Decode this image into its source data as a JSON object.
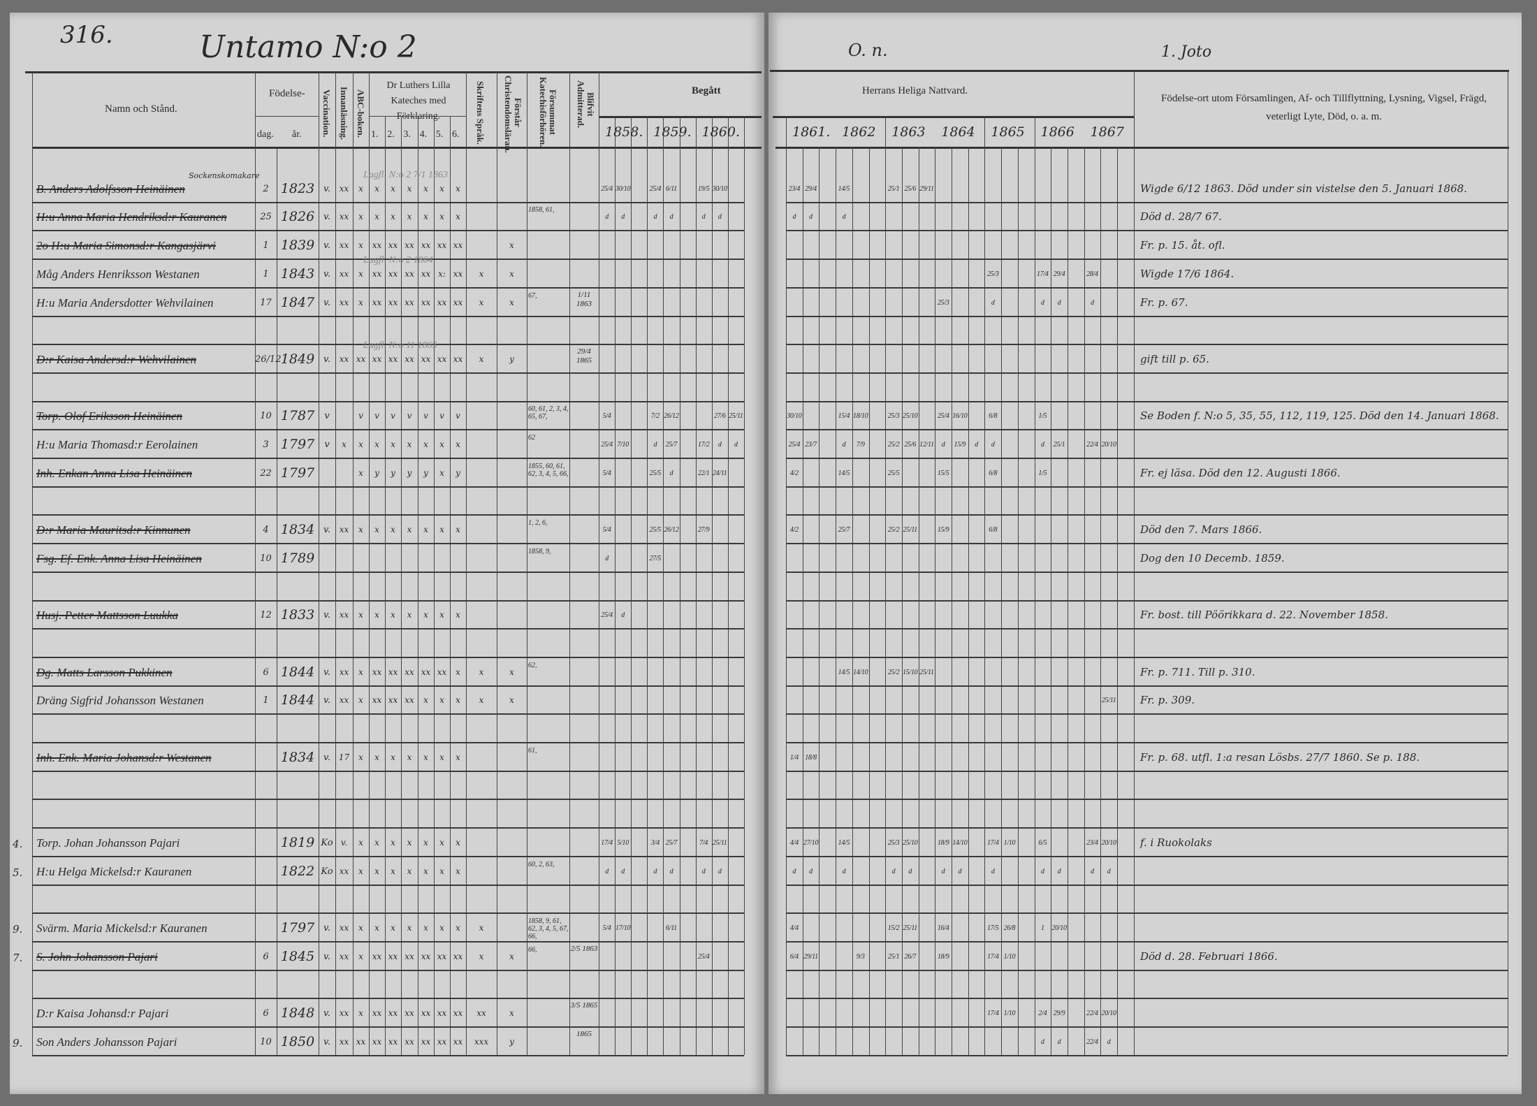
{
  "header": {
    "page_number": "316.",
    "village_title": "Untamo N:o 2",
    "right_note_1": "O. n.",
    "right_note_2": "1. Joto"
  },
  "columns": {
    "name": "Namn och Stånd.",
    "birth": "Födelse-",
    "birth_day": "dag.",
    "birth_year": "år.",
    "vaccination": "Vaccination.",
    "reading": "Innanläsning.",
    "abc": "ABC-boken.",
    "catechism": "Dr Luthers Lilla Kateches med Förklaring.",
    "catechism_parts": [
      "1.",
      "2.",
      "3.",
      "4.",
      "5.",
      "6."
    ],
    "scripture_language": "Skriftens Språk.",
    "understands": "Förstår Christendomsläran.",
    "missed": "Försummat Katechisförhören.",
    "admitted": "Blifvit Admitterad.",
    "communion_taken": "Begått",
    "communion_years_left": [
      "1858.",
      "1859.",
      "1860."
    ],
    "communion_title": "Herrans Heliga Nattvard.",
    "communion_years_right": [
      "1861.",
      "1862",
      "1863",
      "1864",
      "1865",
      "1866",
      "1867"
    ],
    "remarks": "Födelse-ort utom Församlingen, Af- och Tillflyttning, Lysning, Vigsel, Frägd, veterligt Lyte, Död, o. a. m."
  },
  "rows": [
    {
      "name": "B. Anders Adolfsson Heinäinen",
      "title_note": "Sockenskomakare",
      "struck": true,
      "day": "2",
      "year": "1823",
      "vacc": "v.",
      "marks": [
        "xx",
        "x",
        "x",
        "x",
        "x",
        "x",
        "x",
        "x",
        "",
        ""
      ],
      "missed": "",
      "admitted": "",
      "faded_note": "Lagfl. N:o 2 7/1 1863",
      "c": {
        "1858": [
          "25/4",
          "30/10",
          ""
        ],
        "1859": [
          "25/4",
          "6/11",
          ""
        ],
        "1860": [
          "19/5",
          "30/10",
          ""
        ],
        "1861": [
          "23/4",
          "29/4",
          ""
        ],
        "1862": [
          "14/5",
          "",
          ""
        ],
        "1863": [
          "25/1",
          "25/6",
          "29/11"
        ]
      },
      "remark": "Wigde 6/12 1863. Död under sin vistelse den 5. Januari 1868."
    },
    {
      "name": "H:u Anna Maria Hendriksd:r Kauranen",
      "struck": true,
      "day": "25",
      "year": "1826",
      "vacc": "v.",
      "marks": [
        "xx",
        "x",
        "x",
        "x",
        "x",
        "x",
        "x",
        "x",
        "",
        ""
      ],
      "missed": "1858, 61,",
      "admitted": "",
      "c": {
        "1858": [
          "d",
          "d",
          ""
        ],
        "1859": [
          "d",
          "d",
          ""
        ],
        "1860": [
          "d",
          "d",
          ""
        ],
        "1861": [
          "d",
          "d",
          ""
        ],
        "1862": [
          "d",
          "",
          ""
        ]
      },
      "remark": "Död d. 28/7 67."
    },
    {
      "name": "2o H:u Maria Simonsd:r Kangasjärvi",
      "struck": true,
      "day": "1",
      "year": "1839",
      "vacc": "v.",
      "marks": [
        "xx",
        "x",
        "xx",
        "xx",
        "xx",
        "xx",
        "xx",
        "xx",
        "",
        "x"
      ],
      "missed": "",
      "admitted": "",
      "c": {},
      "remark": "Fr. p. 15. åt. ofl."
    },
    {
      "name": "Måg Anders Henriksson Westanen",
      "struck": false,
      "day": "1",
      "year": "1843",
      "vacc": "v.",
      "marks": [
        "xx",
        "x",
        "xx",
        "xx",
        "xx",
        "xx",
        "x:",
        "xx",
        "x",
        "x"
      ],
      "missed": "",
      "admitted": "",
      "faded_note": "Lagfl. N:o 2 1864",
      "c": {
        "1865": [
          "25/3",
          "",
          ""
        ],
        "1866": [
          "17/4",
          "29/4",
          ""
        ],
        "1867": [
          "28/4",
          "",
          ""
        ]
      },
      "remark": "Wigde 17/6 1864."
    },
    {
      "name": "H:u Maria Andersdotter Wehvilainen",
      "struck": false,
      "day": "17",
      "year": "1847",
      "vacc": "v.",
      "marks": [
        "xx",
        "x",
        "xx",
        "xx",
        "xx",
        "xx",
        "xx",
        "xx",
        "x",
        "x"
      ],
      "missed": "67,",
      "admitted": "1/11 1863",
      "c": {
        "1864": [
          "25/3",
          "",
          ""
        ],
        "1865": [
          "d",
          "",
          ""
        ],
        "1866": [
          "d",
          "d",
          ""
        ],
        "1867": [
          "d",
          "",
          ""
        ]
      },
      "remark": "Fr. p. 67."
    },
    {
      "name": "",
      "day": "",
      "year": "",
      "vacc": "",
      "marks": [],
      "c": {},
      "remark": ""
    },
    {
      "name": "D:r Kaisa Andersd:r Wehvilainen",
      "struck": true,
      "day": "26/12",
      "year": "1849",
      "vacc": "v.",
      "marks": [
        "xx",
        "xx",
        "xx",
        "xx",
        "xx",
        "xx",
        "xx",
        "xx",
        "x",
        "y"
      ],
      "missed": "",
      "admitted": "29/4 1865",
      "faded_note": "Lagfl. N:o 11 1865",
      "c": {},
      "remark": "gift till p. 65."
    },
    {
      "name": "",
      "day": "",
      "year": "",
      "vacc": "",
      "marks": [],
      "c": {},
      "remark": ""
    },
    {
      "name": "Torp. Olof Eriksson Heinäinen",
      "struck": true,
      "day": "10",
      "year": "1787",
      "vacc": "v",
      "marks": [
        "",
        "v",
        "v",
        "v",
        "v",
        "v",
        "v",
        "v",
        "",
        ""
      ],
      "missed": "60, 61, 2, 3, 4, 65, 67,",
      "admitted": "",
      "c": {
        "1858": [
          "5/4",
          "",
          ""
        ],
        "1859": [
          "7/2",
          "26/12",
          ""
        ],
        "1860": [
          "",
          "27/6",
          "25/11"
        ],
        "1861": [
          "30/10",
          "",
          ""
        ],
        "1862": [
          "15/4",
          "18/10",
          ""
        ],
        "1863": [
          "25/3",
          "25/10",
          ""
        ],
        "1864": [
          "25/4",
          "16/10",
          ""
        ],
        "1865": [
          "6/8",
          "",
          ""
        ],
        "1866": [
          "1/5",
          "",
          ""
        ]
      },
      "remark": "Se Boden f. N:o 5, 35, 55, 112, 119, 125. Död den 14. Januari 1868."
    },
    {
      "name": "H:u Maria Thomasd:r Eerolainen",
      "struck": false,
      "day": "3",
      "year": "1797",
      "vacc": "v",
      "marks": [
        "x",
        "x",
        "x",
        "x",
        "x",
        "x",
        "x",
        "x",
        "",
        ""
      ],
      "missed": "62",
      "admitted": "",
      "c": {
        "1858": [
          "25/4",
          "7/10",
          ""
        ],
        "1859": [
          "d",
          "25/7",
          ""
        ],
        "1860": [
          "17/2",
          "d",
          "d"
        ],
        "1861": [
          "25/4",
          "23/7",
          ""
        ],
        "1862": [
          "d",
          "7/9",
          ""
        ],
        "1863": [
          "25/2",
          "25/6",
          "12/11"
        ],
        "1864": [
          "d",
          "15/9",
          "d"
        ],
        "1865": [
          "d",
          "",
          ""
        ],
        "1866": [
          "d",
          "25/1",
          ""
        ],
        "1867": [
          "22/4",
          "20/10",
          ""
        ]
      },
      "remark": ""
    },
    {
      "name": "Inh. Enkan Anna Lisa Heinäinen",
      "struck": true,
      "day": "22",
      "year": "1797",
      "vacc": "",
      "marks": [
        "",
        "x",
        "y",
        "y",
        "y",
        "y",
        "x",
        "y",
        "",
        ""
      ],
      "missed": "1855, 60, 61, 62, 3, 4, 5, 66,",
      "admitted": "",
      "c": {
        "1858": [
          "5/4",
          "",
          ""
        ],
        "1859": [
          "25/5",
          "d",
          ""
        ],
        "1860": [
          "22/1",
          "24/11",
          ""
        ],
        "1861": [
          "4/2",
          "",
          ""
        ],
        "1862": [
          "14/5",
          "",
          ""
        ],
        "1863": [
          "25/5",
          "",
          ""
        ],
        "1864": [
          "15/5",
          "",
          ""
        ],
        "1865": [
          "6/8",
          "",
          ""
        ],
        "1866": [
          "1/5",
          "",
          ""
        ]
      },
      "remark": "Fr. ej läsa. Död den 12. Augusti 1866."
    },
    {
      "name": "",
      "day": "",
      "year": "",
      "vacc": "",
      "marks": [],
      "c": {},
      "remark": ""
    },
    {
      "name": "D:r Maria Mauritsd:r Kinnunen",
      "struck": true,
      "day": "4",
      "year": "1834",
      "vacc": "v.",
      "marks": [
        "xx",
        "x",
        "x",
        "x",
        "x",
        "x",
        "x",
        "x",
        "",
        ""
      ],
      "missed": "1, 2, 6,",
      "admitted": "",
      "c": {
        "1858": [
          "5/4",
          "",
          ""
        ],
        "1859": [
          "25/5",
          "26/12",
          ""
        ],
        "1860": [
          "27/9",
          "",
          ""
        ],
        "1861": [
          "4/2",
          "",
          ""
        ],
        "1862": [
          "25/7",
          "",
          ""
        ],
        "1863": [
          "25/2",
          "25/11",
          ""
        ],
        "1864": [
          "15/9",
          "",
          ""
        ],
        "1865": [
          "6/8",
          "",
          ""
        ]
      },
      "remark": "Död den 7. Mars 1866."
    },
    {
      "name": "Fsg. Ef. Enk. Anna Lisa Heinäinen",
      "struck": true,
      "day": "10",
      "year": "1789",
      "vacc": "",
      "marks": [],
      "missed": "1858, 9,",
      "admitted": "",
      "c": {
        "1858": [
          "d",
          "",
          ""
        ],
        "1859": [
          "27/5",
          "",
          ""
        ]
      },
      "remark": "Dog den 10 Decemb. 1859."
    },
    {
      "name": "",
      "day": "",
      "year": "",
      "vacc": "",
      "marks": [],
      "c": {},
      "remark": ""
    },
    {
      "name": "Husj. Petter Mattsson Luukka",
      "struck": true,
      "day": "12",
      "year": "1833",
      "vacc": "v.",
      "marks": [
        "xx",
        "x",
        "x",
        "x",
        "x",
        "x",
        "x",
        "x",
        "",
        ""
      ],
      "missed": "",
      "admitted": "",
      "c": {
        "1858": [
          "25/4",
          "d",
          ""
        ]
      },
      "remark": "Fr. bost. till Pöörikkara d. 22. November 1858."
    },
    {
      "name": "",
      "day": "",
      "year": "",
      "vacc": "",
      "marks": [],
      "c": {},
      "remark": ""
    },
    {
      "name": "Dg. Matts Larsson Pukkinen",
      "struck": true,
      "day": "6",
      "year": "1844",
      "vacc": "v.",
      "marks": [
        "xx",
        "x",
        "xx",
        "xx",
        "xx",
        "xx",
        "xx",
        "x",
        "x",
        "x"
      ],
      "missed": "62,",
      "admitted": "",
      "c": {
        "1862": [
          "14/5",
          "14/10",
          ""
        ],
        "1863": [
          "25/2",
          "15/10",
          "25/11"
        ]
      },
      "remark": "Fr. p. 711. Till p. 310."
    },
    {
      "name": "Dräng Sigfrid Johansson Westanen",
      "struck": false,
      "day": "1",
      "year": "1844",
      "vacc": "v.",
      "marks": [
        "xx",
        "x",
        "xx",
        "xx",
        "xx",
        "x",
        "x",
        "x",
        "x",
        "x"
      ],
      "missed": "",
      "admitted": "",
      "c": {
        "1867": [
          "",
          "25/11",
          ""
        ]
      },
      "remark": "Fr. p. 309."
    },
    {
      "name": "",
      "day": "",
      "year": "",
      "vacc": "",
      "marks": [],
      "c": {},
      "remark": ""
    },
    {
      "name": "Inh. Enk. Maria Johansd:r Westanen",
      "struck": true,
      "day": "",
      "year": "1834",
      "vacc": "v.",
      "marks": [
        "17",
        "x",
        "x",
        "x",
        "x",
        "x",
        "x",
        "x",
        "",
        ""
      ],
      "missed": "61,",
      "admitted": "",
      "c": {
        "1861": [
          "1/4",
          "18/8",
          ""
        ]
      },
      "remark": "Fr. p. 68. utfl. 1:a resan Lösbs. 27/7 1860. Se p. 188."
    },
    {
      "name": "",
      "day": "",
      "year": "",
      "vacc": "",
      "marks": [],
      "c": {},
      "remark": ""
    },
    {
      "name": "",
      "day": "",
      "year": "",
      "vacc": "",
      "marks": [],
      "c": {},
      "remark": ""
    },
    {
      "margin": "4.",
      "name": "Torp. Johan Johansson Pajari",
      "struck": false,
      "day": "",
      "year": "1819",
      "vacc": "Ko",
      "marks": [
        "v.",
        "x",
        "x",
        "x",
        "x",
        "x",
        "x",
        "x",
        "",
        ""
      ],
      "missed": "",
      "admitted": "",
      "c": {
        "1858": [
          "17/4",
          "5/10",
          ""
        ],
        "1859": [
          "3/4",
          "25/7",
          ""
        ],
        "1860": [
          "7/4",
          "25/11",
          ""
        ],
        "1861": [
          "4/4",
          "27/10",
          ""
        ],
        "1862": [
          "14/5",
          "",
          ""
        ],
        "1863": [
          "25/3",
          "25/10",
          ""
        ],
        "1864": [
          "18/9",
          "14/10",
          ""
        ],
        "1865": [
          "17/4",
          "1/10",
          ""
        ],
        "1866": [
          "6/5",
          "",
          ""
        ],
        "1867": [
          "23/4",
          "20/10",
          ""
        ]
      },
      "remark": "f. i Ruokolaks"
    },
    {
      "margin": "5.",
      "name": "H:u Helga Mickelsd:r Kauranen",
      "struck": false,
      "day": "",
      "year": "1822",
      "vacc": "Ko",
      "marks": [
        "xx",
        "x",
        "x",
        "x",
        "x",
        "x",
        "x",
        "x",
        "",
        ""
      ],
      "missed": "60, 2, 63,",
      "admitted": "",
      "c": {
        "1858": [
          "d",
          "d",
          ""
        ],
        "1859": [
          "d",
          "d",
          ""
        ],
        "1860": [
          "d",
          "d",
          ""
        ],
        "1861": [
          "d",
          "d",
          ""
        ],
        "1862": [
          "d",
          "",
          ""
        ],
        "1863": [
          "d",
          "d",
          ""
        ],
        "1864": [
          "d",
          "d",
          ""
        ],
        "1865": [
          "d",
          "",
          ""
        ],
        "1866": [
          "d",
          "d",
          ""
        ],
        "1867": [
          "d",
          "d",
          ""
        ]
      },
      "remark": ""
    },
    {
      "name": "",
      "day": "",
      "year": "",
      "vacc": "",
      "marks": [],
      "c": {},
      "remark": ""
    },
    {
      "margin": "9.",
      "name": "Svärm. Maria Mickelsd:r Kauranen",
      "struck": false,
      "day": "",
      "year": "1797",
      "vacc": "v.",
      "marks": [
        "xx",
        "x",
        "x",
        "x",
        "x",
        "x",
        "x",
        "x",
        "x",
        ""
      ],
      "missed": "1858, 9, 61, 62, 3, 4, 5, 67, 66,",
      "admitted": "",
      "c": {
        "1858": [
          "5/4",
          "17/10",
          ""
        ],
        "1859": [
          "",
          "6/11",
          ""
        ],
        "1861": [
          "4/4",
          "",
          ""
        ],
        "1862": [
          "",
          "",
          ""
        ],
        "1863": [
          "15/2",
          "25/11",
          ""
        ],
        "1864": [
          "16/4",
          "",
          ""
        ],
        "1865": [
          "17/5",
          "26/8",
          ""
        ],
        "1866": [
          "1",
          "20/10",
          ""
        ]
      },
      "remark": ""
    },
    {
      "margin": "7.",
      "name": "S. John Johansson Pajari",
      "struck": true,
      "day": "6",
      "year": "1845",
      "vacc": "v.",
      "marks": [
        "xx",
        "x",
        "xx",
        "xx",
        "xx",
        "xx",
        "xx",
        "xx",
        "x",
        "x"
      ],
      "missed": "66,",
      "admitted": "2/5 1863",
      "c": {
        "1860": [
          "25/4",
          "",
          ""
        ],
        "1861": [
          "6/4",
          "29/11",
          ""
        ],
        "1862": [
          "",
          "9/3",
          ""
        ],
        "1863": [
          "25/1",
          "26/7",
          ""
        ],
        "1864": [
          "18/9",
          "",
          ""
        ],
        "1865": [
          "17/4",
          "1/10",
          ""
        ]
      },
      "remark": "Död d. 28. Februari 1866."
    },
    {
      "name": "",
      "day": "",
      "year": "",
      "vacc": "",
      "marks": [],
      "c": {},
      "remark": ""
    },
    {
      "name": "D:r Kaisa Johansd:r Pajari",
      "struck": false,
      "day": "6",
      "year": "1848",
      "vacc": "v.",
      "marks": [
        "xx",
        "x",
        "xx",
        "xx",
        "xx",
        "xx",
        "xx",
        "xx",
        "xx",
        "x"
      ],
      "missed": "",
      "admitted": "3/5 1865",
      "c": {
        "1865": [
          "17/4",
          "1/10",
          ""
        ],
        "1866": [
          "2/4",
          "29/9",
          ""
        ],
        "1867": [
          "22/4",
          "20/10",
          ""
        ]
      },
      "remark": ""
    },
    {
      "margin": "9.",
      "name": "Son Anders Johansson Pajari",
      "struck": false,
      "day": "10",
      "year": "1850",
      "vacc": "v.",
      "marks": [
        "xx",
        "xx",
        "xx",
        "xx",
        "xx",
        "xx",
        "xx",
        "xx",
        "xxx",
        "y"
      ],
      "missed": "",
      "admitted": "1865",
      "c": {
        "1866": [
          "d",
          "d",
          ""
        ],
        "1867": [
          "22/4",
          "d",
          ""
        ]
      },
      "remark": ""
    }
  ]
}
